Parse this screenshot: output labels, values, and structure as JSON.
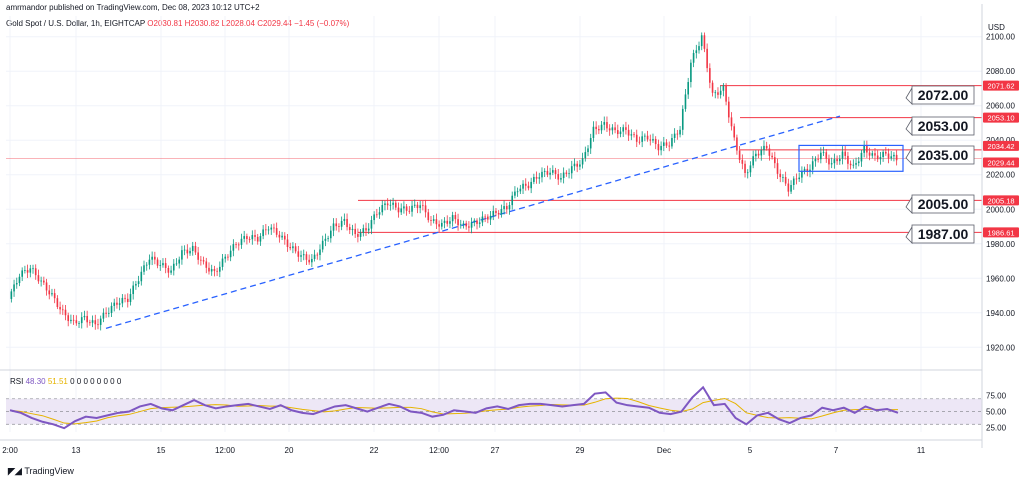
{
  "header": {
    "published": "amrmandor published on TradingView.com, Dec 08, 2023 10:12 UTC+2",
    "symbol": "Gold Spot / U.S. Dollar, 1h, EIGHTCAP",
    "ohlc": {
      "o": "O2030.81",
      "h": "H2030.82",
      "l": "L2028.04",
      "c": "C2029.44",
      "chg": "−1.45 (−0.07%)"
    }
  },
  "rsi": {
    "label": "RSI",
    "value": "48.30",
    "ma": "51.51",
    "extra": "0 0 0 0 0 0 0 0"
  },
  "footer": {
    "brand": "TradingView"
  },
  "colors": {
    "up": "#089981",
    "down": "#f23645",
    "trend": "#2962ff",
    "rsi": "#7e57c2",
    "rsi_ma": "#e6b400",
    "band": "#ede7f6",
    "level": "#f23645"
  },
  "chart_data": {
    "type": "candlestick",
    "currency": "USD",
    "y_ticks": [
      1920,
      1940,
      1960,
      1980,
      2000,
      2020,
      2040,
      2060,
      2080,
      2100
    ],
    "ylim": [
      1908,
      2112
    ],
    "x_ticks": [
      "2:00",
      "13",
      "15",
      "12:00",
      "20",
      "22",
      "12:00",
      "27",
      "29",
      "Dec",
      "5",
      "7",
      "11"
    ],
    "close_path": [
      1948,
      1962,
      1966,
      1958,
      1950,
      1940,
      1934,
      1937,
      1933,
      1940,
      1946,
      1948,
      1960,
      1972,
      1968,
      1964,
      1975,
      1977,
      1968,
      1963,
      1972,
      1980,
      1984,
      1983,
      1990,
      1985,
      1978,
      1973,
      1970,
      1980,
      1990,
      1993,
      1985,
      1988,
      1998,
      2004,
      2000,
      2000,
      2003,
      1993,
      1991,
      1995,
      1990,
      1992,
      1995,
      1998,
      2001,
      2012,
      2014,
      2020,
      2022,
      2018,
      2024,
      2028,
      2046,
      2049,
      2045,
      2046,
      2040,
      2042,
      2036,
      2038,
      2047,
      2085,
      2100,
      2066,
      2070,
      2040,
      2020,
      2032,
      2036,
      2022,
      2012,
      2020,
      2024,
      2033,
      2026,
      2032,
      2024,
      2035,
      2030,
      2032,
      2029
    ],
    "price_levels": [
      {
        "label": "2072.00",
        "tag": "2071.62",
        "value": 2071.62
      },
      {
        "label": "2053.00",
        "tag": "2053.10",
        "value": 2053.1
      },
      {
        "label": "2035.00",
        "tag": "2034.42",
        "value": 2034.42
      },
      {
        "label": "2005.00",
        "tag": "2005.18",
        "value": 2005.18
      },
      {
        "label": "1987.00",
        "tag": "1986.61",
        "value": 1986.61
      }
    ],
    "current_price": {
      "tag": "2029.44",
      "value": 2029.44
    },
    "trendline": {
      "from": [
        "13",
        1931
      ],
      "to": [
        "5",
        2054
      ]
    },
    "range_box": {
      "x_from": "6",
      "x_to": "7",
      "y_low": 2022,
      "y_high": 2037
    },
    "rsi": {
      "y_ticks": [
        25,
        50,
        75
      ],
      "ylim": [
        18,
        90
      ],
      "band": [
        30,
        70
      ],
      "values": [
        52,
        48,
        40,
        34,
        30,
        24,
        35,
        42,
        40,
        44,
        48,
        50,
        58,
        62,
        55,
        52,
        60,
        68,
        60,
        55,
        58,
        60,
        62,
        58,
        54,
        60,
        52,
        48,
        46,
        52,
        58,
        60,
        55,
        50,
        56,
        62,
        58,
        50,
        48,
        42,
        45,
        52,
        50,
        48,
        55,
        58,
        54,
        60,
        62,
        62,
        60,
        58,
        60,
        62,
        78,
        80,
        64,
        60,
        58,
        56,
        48,
        46,
        50,
        72,
        88,
        60,
        62,
        40,
        30,
        44,
        48,
        38,
        32,
        40,
        44,
        56,
        52,
        56,
        48,
        58,
        52,
        54,
        48
      ]
    }
  }
}
